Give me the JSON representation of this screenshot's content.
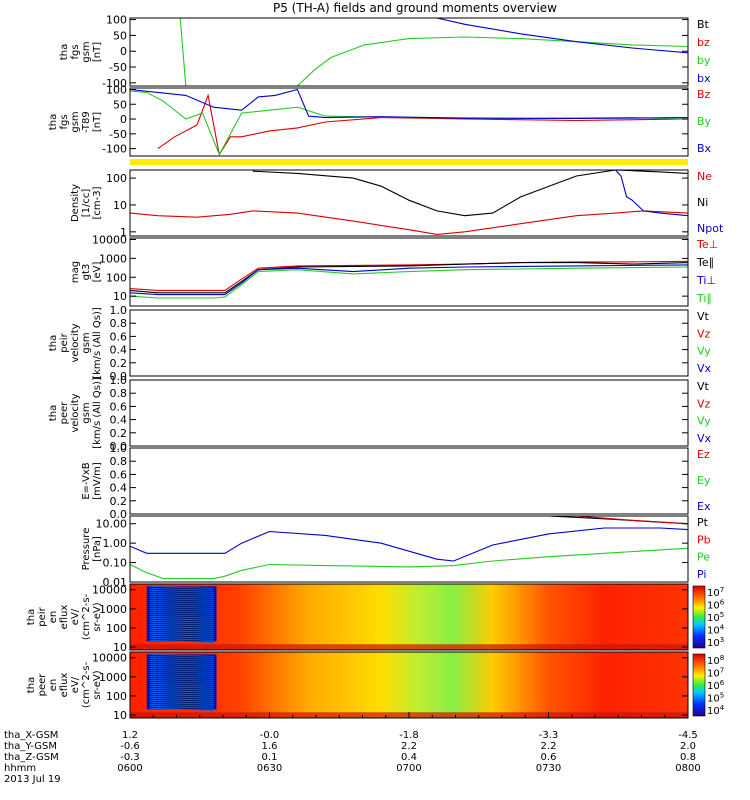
{
  "title": "P5 (TH-A) fields and ground moments overview",
  "colors": {
    "black": "#000000",
    "red": "#dd0000",
    "green": "#22cc22",
    "blue": "#0000cc",
    "yellow": "#ffee00"
  },
  "chart_data": [
    {
      "type": "line",
      "id": "fgs",
      "ylabel": [
        "tha",
        "fgs",
        "gsm",
        "[nT]"
      ],
      "ylim": [
        -110,
        105
      ],
      "yticks": [
        100,
        50,
        0,
        -50,
        -100
      ],
      "legend": [
        {
          "label": "Bt",
          "color": "#000000"
        },
        {
          "label": "bz",
          "color": "#dd0000"
        },
        {
          "label": "by",
          "color": "#22cc22"
        },
        {
          "label": "bx",
          "color": "#0000cc"
        }
      ],
      "series": [
        {
          "name": "Bt",
          "color": "#000000",
          "x": [],
          "y": []
        },
        {
          "name": "bz",
          "color": "#dd0000",
          "x": [],
          "y": []
        },
        {
          "name": "by",
          "color": "#22cc22",
          "x": [
            0.09,
            0.1,
            0.13,
            0.16,
            0.3,
            0.33,
            0.36,
            0.42,
            0.5,
            0.6,
            0.7,
            0.8,
            0.9,
            1.0
          ],
          "y": [
            105,
            -110,
            -110,
            -110,
            -110,
            -60,
            -20,
            20,
            40,
            45,
            40,
            30,
            20,
            15
          ]
        },
        {
          "name": "bx",
          "color": "#0000cc",
          "x": [
            0.55,
            0.6,
            0.7,
            0.8,
            0.9,
            1.0
          ],
          "y": [
            105,
            85,
            55,
            30,
            10,
            -5
          ]
        }
      ]
    },
    {
      "type": "line",
      "id": "fgs-t89",
      "ylabel": [
        "tha",
        "fgs",
        "gsm",
        "-T89",
        "[nT]"
      ],
      "ylim": [
        -125,
        105
      ],
      "yticks": [
        100,
        50,
        0,
        -50,
        -100
      ],
      "legend": [
        {
          "label": "Bz",
          "color": "#dd0000"
        },
        {
          "label": "By",
          "color": "#22cc22"
        },
        {
          "label": "Bx",
          "color": "#0000cc"
        }
      ],
      "series": [
        {
          "name": "Bz",
          "color": "#dd0000",
          "x": [
            0.05,
            0.08,
            0.12,
            0.14,
            0.16,
            0.18,
            0.2,
            0.25,
            0.3,
            0.35,
            0.45,
            0.6,
            0.8,
            1.0
          ],
          "y": [
            -100,
            -60,
            -20,
            80,
            -120,
            -60,
            -60,
            -40,
            -30,
            -10,
            5,
            0,
            -5,
            0
          ]
        },
        {
          "name": "By",
          "color": "#22cc22",
          "x": [
            0.0,
            0.03,
            0.06,
            0.1,
            0.13,
            0.16,
            0.2,
            0.25,
            0.3,
            0.35,
            0.5,
            0.7,
            0.9,
            1.0
          ],
          "y": [
            95,
            90,
            60,
            0,
            20,
            -120,
            20,
            30,
            40,
            10,
            5,
            3,
            5,
            0
          ]
        },
        {
          "name": "Bx",
          "color": "#0000cc",
          "x": [
            0.0,
            0.05,
            0.1,
            0.15,
            0.2,
            0.23,
            0.26,
            0.3,
            0.32,
            0.35,
            0.45,
            0.6,
            0.8,
            1.0
          ],
          "y": [
            100,
            90,
            80,
            40,
            30,
            75,
            80,
            100,
            10,
            5,
            8,
            3,
            2,
            5
          ]
        }
      ]
    },
    {
      "type": "line",
      "id": "density",
      "scale": "log",
      "ylabel": [
        "Density",
        "[1/cc]",
        "[cm-3]"
      ],
      "ylim": [
        0.7,
        200
      ],
      "yticks": [
        100,
        10,
        1
      ],
      "ytick_labels": [
        "100",
        "10",
        "1"
      ],
      "legend": [
        {
          "label": "Ne",
          "color": "#dd0000"
        },
        {
          "label": "Ni",
          "color": "#000000"
        },
        {
          "label": "Npot",
          "color": "#0000cc"
        }
      ],
      "series": [
        {
          "name": "Ne",
          "color": "#dd0000",
          "x": [
            0.0,
            0.05,
            0.12,
            0.18,
            0.22,
            0.3,
            0.4,
            0.5,
            0.55,
            0.6,
            0.7,
            0.8,
            0.87,
            0.92,
            1.0
          ],
          "y": [
            5,
            4,
            3.5,
            4.5,
            6,
            5,
            2.5,
            1.2,
            0.8,
            1,
            2,
            4,
            5,
            6,
            5
          ]
        },
        {
          "name": "Ni",
          "color": "#000000",
          "x": [
            0.22,
            0.3,
            0.4,
            0.45,
            0.5,
            0.55,
            0.6,
            0.65,
            0.7,
            0.8,
            0.87,
            0.95,
            1.0
          ],
          "y": [
            180,
            150,
            100,
            50,
            15,
            6,
            4,
            5,
            20,
            120,
            200,
            170,
            150
          ]
        },
        {
          "name": "Npot",
          "color": "#0000cc",
          "x": [
            0.87,
            0.88,
            0.89,
            0.9,
            0.92,
            0.95,
            1.0
          ],
          "y": [
            200,
            120,
            20,
            15,
            6,
            5,
            4
          ]
        }
      ]
    },
    {
      "type": "line",
      "id": "temperature",
      "scale": "log",
      "ylabel": [
        "mag",
        "gt3",
        "[eV]"
      ],
      "ylim": [
        3,
        12000
      ],
      "yticks": [
        10000,
        1000,
        100,
        10
      ],
      "ytick_labels": [
        "10000",
        "1000",
        "100",
        "10"
      ],
      "legend": [
        {
          "label": "Te⊥",
          "color": "#dd0000"
        },
        {
          "label": "Te∥",
          "color": "#000000"
        },
        {
          "label": "Ti⊥",
          "color": "#0000cc"
        },
        {
          "label": "Ti∥",
          "color": "#22cc22"
        }
      ],
      "series": [
        {
          "name": "Te⊥",
          "color": "#dd0000",
          "x": [
            0.0,
            0.05,
            0.15,
            0.17,
            0.2,
            0.23,
            0.3,
            0.5,
            0.6,
            0.7,
            0.8,
            0.9,
            1.0
          ],
          "y": [
            25,
            20,
            20,
            20,
            80,
            300,
            400,
            450,
            500,
            600,
            650,
            650,
            700
          ]
        },
        {
          "name": "Te∥",
          "color": "#000000",
          "x": [
            0.0,
            0.05,
            0.15,
            0.17,
            0.2,
            0.23,
            0.3,
            0.5,
            0.6,
            0.7,
            0.8,
            0.9,
            1.0
          ],
          "y": [
            20,
            15,
            15,
            15,
            60,
            250,
            350,
            400,
            500,
            600,
            600,
            500,
            600
          ]
        },
        {
          "name": "Ti⊥",
          "color": "#0000cc",
          "x": [
            0.0,
            0.05,
            0.15,
            0.17,
            0.2,
            0.23,
            0.3,
            0.4,
            0.5,
            0.6,
            0.8,
            1.0
          ],
          "y": [
            15,
            12,
            12,
            12,
            50,
            250,
            300,
            200,
            300,
            350,
            400,
            450
          ]
        },
        {
          "name": "Ti∥",
          "color": "#22cc22",
          "x": [
            0.0,
            0.05,
            0.15,
            0.17,
            0.2,
            0.23,
            0.3,
            0.4,
            0.5,
            0.6,
            0.8,
            1.0
          ],
          "y": [
            10,
            8,
            8,
            9,
            40,
            200,
            250,
            150,
            200,
            250,
            300,
            350
          ]
        }
      ]
    },
    {
      "type": "line",
      "id": "peir-velocity",
      "ylabel": [
        "tha",
        "peir",
        "velocity",
        "gsm",
        "[km/s (All Qs)]"
      ],
      "ylim": [
        0,
        1
      ],
      "yticks": [
        1.0,
        0.8,
        0.6,
        0.4,
        0.2,
        0.0
      ],
      "ytick_labels": [
        "1.0",
        "0.8",
        "0.6",
        "0.4",
        "0.2",
        "0.0"
      ],
      "legend": [
        {
          "label": "Vt",
          "color": "#000000"
        },
        {
          "label": "Vz",
          "color": "#dd0000"
        },
        {
          "label": "Vy",
          "color": "#22cc22"
        },
        {
          "label": "Vx",
          "color": "#0000cc"
        }
      ],
      "series": []
    },
    {
      "type": "line",
      "id": "peer-velocity",
      "ylabel": [
        "tha",
        "peer",
        "velocity",
        "gsm",
        "[km/s (All Qs)]"
      ],
      "ylim": [
        0,
        1
      ],
      "yticks": [
        1.0,
        0.8,
        0.6,
        0.4,
        0.2,
        0.0
      ],
      "ytick_labels": [
        "1.0",
        "0.8",
        "0.6",
        "0.4",
        "0.2",
        "0.0"
      ],
      "legend": [
        {
          "label": "Vt",
          "color": "#000000"
        },
        {
          "label": "Vz",
          "color": "#dd0000"
        },
        {
          "label": "Vy",
          "color": "#22cc22"
        },
        {
          "label": "Vx",
          "color": "#0000cc"
        }
      ],
      "series": []
    },
    {
      "type": "line",
      "id": "efield",
      "ylabel": [
        "E=-VxB",
        "[mV/m]"
      ],
      "ylim": [
        0,
        1
      ],
      "yticks": [
        1.0,
        0.8,
        0.6,
        0.4,
        0.2,
        0.0
      ],
      "ytick_labels": [
        "1.0",
        "0.8",
        "0.6",
        "0.4",
        "0.2",
        "0.0"
      ],
      "legend": [
        {
          "label": "Ez",
          "color": "#dd0000"
        },
        {
          "label": "Ey",
          "color": "#22cc22"
        },
        {
          "label": "Ex",
          "color": "#0000cc"
        }
      ],
      "series": []
    },
    {
      "type": "line",
      "id": "pressure",
      "scale": "log",
      "ylabel": [
        "Pressure",
        "[nPa]"
      ],
      "ylim": [
        0.01,
        25
      ],
      "yticks": [
        10,
        1,
        0.1,
        0.01
      ],
      "ytick_labels": [
        "10.00",
        "1.00",
        "0.10",
        "0.01"
      ],
      "legend": [
        {
          "label": "Pt",
          "color": "#000000"
        },
        {
          "label": "Pb",
          "color": "#dd0000"
        },
        {
          "label": "Pe",
          "color": "#22cc22"
        },
        {
          "label": "Pi",
          "color": "#0000cc"
        }
      ],
      "series": [
        {
          "name": "Pt",
          "color": "#000000",
          "x": [
            0.75,
            0.85,
            0.95,
            1.0
          ],
          "y": [
            25,
            18,
            12,
            10
          ]
        },
        {
          "name": "Pb",
          "color": "#dd0000",
          "x": [
            0.8,
            0.9,
            1.0
          ],
          "y": [
            25,
            15,
            10
          ]
        },
        {
          "name": "Pe",
          "color": "#22cc22",
          "x": [
            0.0,
            0.03,
            0.06,
            0.15,
            0.17,
            0.2,
            0.25,
            0.35,
            0.5,
            0.58,
            0.65,
            0.75,
            0.85,
            0.95,
            1.0
          ],
          "y": [
            0.08,
            0.03,
            0.015,
            0.015,
            0.02,
            0.04,
            0.08,
            0.07,
            0.06,
            0.07,
            0.12,
            0.2,
            0.3,
            0.45,
            0.55
          ]
        },
        {
          "name": "Pi",
          "color": "#0000cc",
          "x": [
            0.0,
            0.03,
            0.15,
            0.17,
            0.2,
            0.25,
            0.35,
            0.45,
            0.55,
            0.58,
            0.65,
            0.75,
            0.85,
            0.95,
            1.0
          ],
          "y": [
            0.7,
            0.3,
            0.3,
            0.3,
            1.0,
            4,
            2.5,
            1.0,
            0.15,
            0.12,
            0.8,
            3,
            6,
            6,
            5
          ]
        }
      ]
    },
    {
      "type": "heatmap",
      "id": "peir-eflux",
      "scale": "log",
      "ylabel": [
        "tha",
        "peir",
        "en",
        "eflux",
        "eV/",
        "(cm^2-s-",
        "sr-eV)"
      ],
      "ylim": [
        7,
        20000
      ],
      "yticks": [
        10000,
        1000,
        100,
        10
      ],
      "ytick_labels": [
        "10000",
        "1000",
        "100",
        "10"
      ],
      "colorbar": {
        "ticks": [
          "10^7",
          "10^6",
          "10^5",
          "10^4",
          "10^3"
        ]
      }
    },
    {
      "type": "heatmap",
      "id": "peer-eflux",
      "scale": "log",
      "ylabel": [
        "tha",
        "peer",
        "en",
        "eflux",
        "eV/",
        "(cm^2-s-",
        "sr-eV)"
      ],
      "ylim": [
        7,
        20000
      ],
      "yticks": [
        10000,
        1000,
        100,
        10
      ],
      "ytick_labels": [
        "10000",
        "1000",
        "100",
        "10"
      ],
      "colorbar": {
        "ticks": [
          "10^8",
          "10^7",
          "10^6",
          "10^5",
          "10^4"
        ]
      }
    }
  ],
  "x_axis": {
    "rows": [
      {
        "label": "tha_X-GSM",
        "values": [
          "1.2",
          "-0.0",
          "-1.8",
          "-3.3",
          "-4.5"
        ]
      },
      {
        "label": "tha_Y-GSM",
        "values": [
          "-0.6",
          "1.6",
          "2.2",
          "2.2",
          "2.0"
        ]
      },
      {
        "label": "tha_Z-GSM",
        "values": [
          "-0.3",
          "0.1",
          "0.4",
          "0.6",
          "0.8"
        ]
      },
      {
        "label": "hhmm",
        "values": [
          "0600",
          "0630",
          "0700",
          "0730",
          "0800"
        ]
      }
    ],
    "date": "2013 Jul 19",
    "minor_ticks": 6
  }
}
